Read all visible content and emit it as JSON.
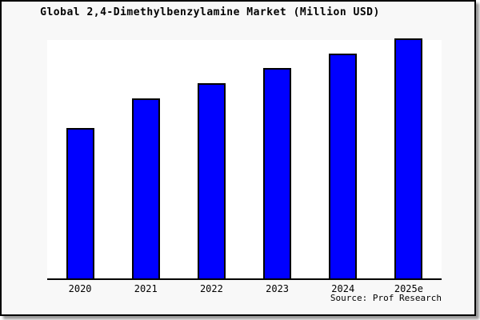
{
  "chart_data": {
    "type": "bar",
    "title": "Global 2,4-Dimethylbenzylamine Market (Million USD)",
    "categories": [
      "2020",
      "2021",
      "2022",
      "2023",
      "2024",
      "2025e"
    ],
    "values": [
      188,
      225,
      244,
      263,
      281,
      300
    ],
    "value_note": "no y-axis ticks or gridlines shown; values are relative bar heights estimated in pixels",
    "xlabel": "",
    "ylabel": "",
    "ylim": [
      0,
      300
    ],
    "grid": false,
    "legend": "none",
    "bar_color": "#0000ff",
    "bar_border_color": "#000000",
    "plot_background": "#ffffff",
    "figure_background": "#f8f8f8"
  },
  "footer": {
    "source_label": "Source: Prof Research"
  }
}
